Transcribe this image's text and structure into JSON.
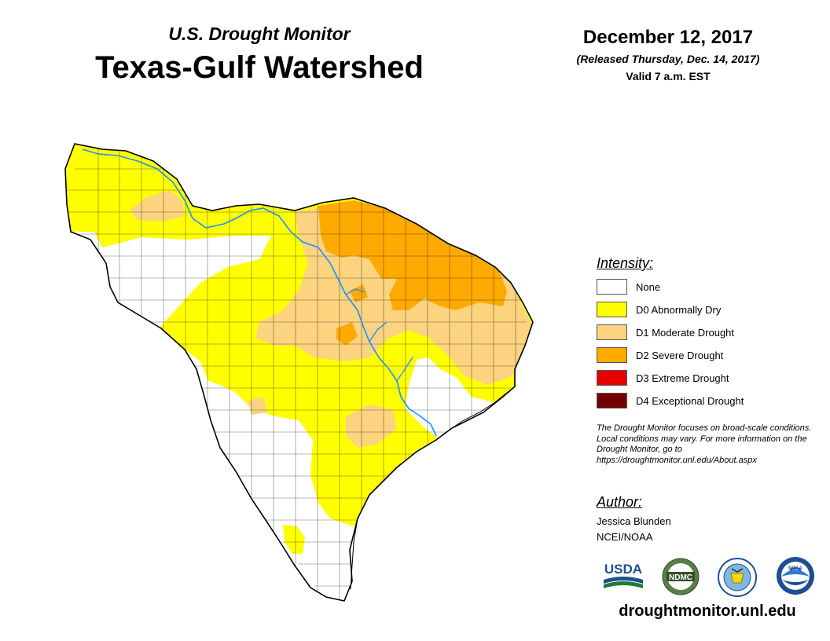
{
  "header": {
    "subtitle": "U.S. Drought Monitor",
    "title": "Texas-Gulf Watershed",
    "date": "December 12, 2017",
    "released": "(Released Thursday, Dec. 14, 2017)",
    "valid": "Valid 7 a.m. EST"
  },
  "legend": {
    "heading": "Intensity:",
    "items": [
      {
        "label": "None",
        "color": "#ffffff"
      },
      {
        "label": "D0 Abnormally Dry",
        "color": "#ffff00"
      },
      {
        "label": "D1 Moderate Drought",
        "color": "#fcd37f"
      },
      {
        "label": "D2 Severe Drought",
        "color": "#ffaa00"
      },
      {
        "label": "D3 Extreme Drought",
        "color": "#e60000"
      },
      {
        "label": "D4 Exceptional Drought",
        "color": "#730000"
      }
    ]
  },
  "note": "The Drought Monitor focuses on broad-scale conditions. Local conditions may vary. For more information on the Drought Monitor, go to https://droughtmonitor.unl.edu/About.aspx",
  "author": {
    "heading": "Author:",
    "name": "Jessica Blunden",
    "org": "NCEI/NOAA"
  },
  "logos": {
    "usda": "USDA",
    "ndmc": "NDMC",
    "noaa": "NOAA"
  },
  "footer_url": "droughtmonitor.unl.edu"
}
